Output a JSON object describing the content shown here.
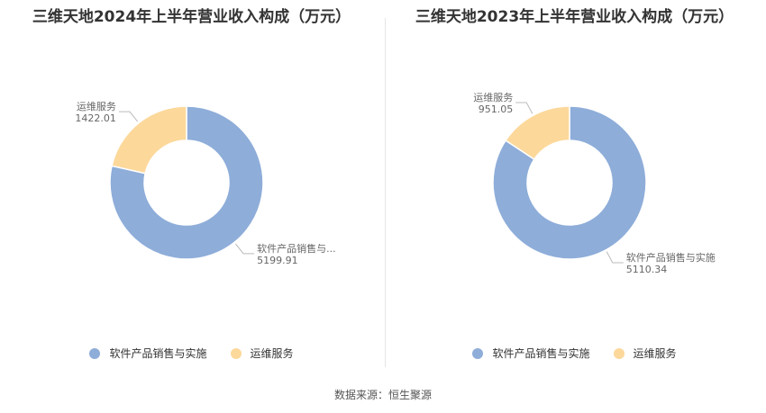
{
  "colors": {
    "software": "#8eadd9",
    "maintenance": "#fcd89b"
  },
  "source": "数据来源：恒生聚源",
  "chart_data": [
    {
      "type": "pie",
      "variant": "donut",
      "title": "三维天地2024年上半年营业收入构成（万元）",
      "slices": [
        {
          "name": "软件产品销售与实施",
          "label": "软件产品销售与...",
          "value": 5199.91,
          "value_label": "5199.91",
          "color": "#8eadd9"
        },
        {
          "name": "运维服务",
          "label": "运维服务",
          "value": 1422.01,
          "value_label": "1422.01",
          "color": "#fcd89b"
        }
      ],
      "legend": [
        "软件产品销售与实施",
        "运维服务"
      ],
      "legend_position": "bottom"
    },
    {
      "type": "pie",
      "variant": "donut",
      "title": "三维天地2023年上半年营业收入构成（万元）",
      "slices": [
        {
          "name": "软件产品销售与实施",
          "label": "软件产品销售与实施",
          "value": 5110.34,
          "value_label": "5110.34",
          "color": "#8eadd9"
        },
        {
          "name": "运维服务",
          "label": "运维服务",
          "value": 951.05,
          "value_label": "951.05",
          "color": "#fcd89b"
        }
      ],
      "legend": [
        "软件产品销售与实施",
        "运维服务"
      ],
      "legend_position": "bottom"
    }
  ]
}
